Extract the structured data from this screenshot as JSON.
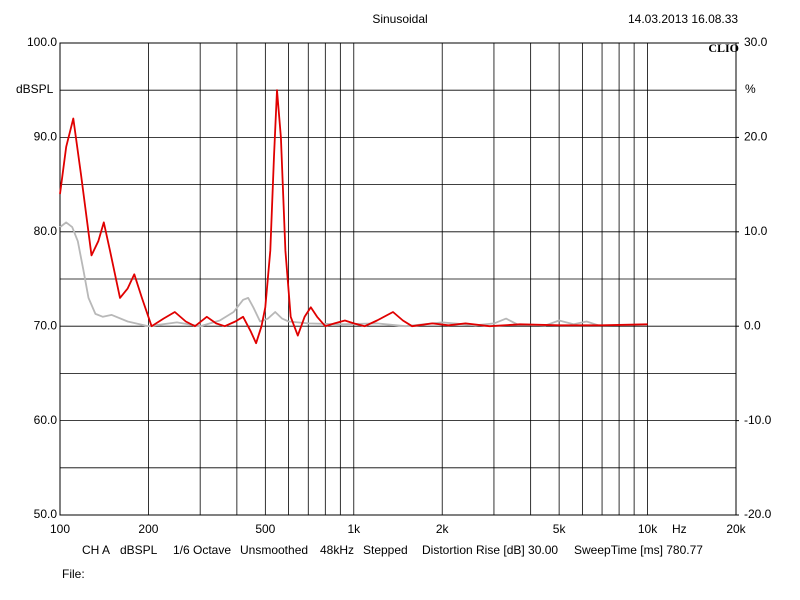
{
  "chart_data": {
    "type": "line",
    "title": "Sinusoidal",
    "timestamp": "14.03.2013 16.08.33",
    "brand": "CLIO",
    "y_label": "dBSPL",
    "y2_label": "%",
    "x_unit": "Hz",
    "x_scale": "log",
    "grid": true,
    "xlim": [
      100,
      20000
    ],
    "xticks": [
      100,
      200,
      500,
      {
        "value": 1000,
        "label": "1k"
      },
      {
        "value": 2000,
        "label": "2k"
      },
      {
        "value": 5000,
        "label": "5k"
      },
      {
        "value": 10000,
        "label": "10k"
      },
      {
        "value": 20000,
        "label": "20k"
      }
    ],
    "xminor": [
      300,
      400,
      600,
      700,
      800,
      900,
      3000,
      4000,
      6000,
      7000,
      8000,
      9000
    ],
    "ylim": [
      50,
      100
    ],
    "yticks": [
      {
        "value": 100,
        "label": "100.0"
      },
      {
        "value": 90,
        "label": "90.0"
      },
      {
        "value": 80,
        "label": "80.0"
      },
      {
        "value": 70,
        "label": "70.0"
      },
      {
        "value": 60,
        "label": "60.0"
      },
      {
        "value": 50,
        "label": "50.0"
      }
    ],
    "yminor": [
      95,
      85,
      75,
      65,
      55
    ],
    "y2lim": [
      -20,
      30
    ],
    "y2ticks": [
      {
        "value": 30,
        "label": "30.0"
      },
      {
        "value": 20,
        "label": "20.0"
      },
      {
        "value": 10,
        "label": "10.0"
      },
      {
        "value": 0,
        "label": "0.0"
      },
      {
        "value": -10,
        "label": "-10.0"
      },
      {
        "value": -20,
        "label": "-20.0"
      }
    ],
    "series": [
      {
        "color": "#b8b8b8",
        "x": [
          100,
          105,
          110,
          115,
          120,
          125,
          132,
          140,
          150,
          170,
          200,
          250,
          300,
          350,
          390,
          420,
          437,
          455,
          480,
          510,
          540,
          570,
          600,
          700,
          900,
          1200,
          1500,
          2000,
          2600,
          3000,
          3300,
          3600,
          4500,
          5000,
          5600,
          6200,
          6800
        ],
        "values": [
          80.5,
          81,
          80.5,
          79,
          76,
          73,
          71.3,
          71,
          71.2,
          70.5,
          70,
          70.4,
          70,
          70.6,
          71.5,
          72.8,
          73,
          72,
          70.5,
          70.8,
          71.5,
          70.8,
          70.5,
          70.3,
          70.2,
          70.3,
          70,
          70.4,
          70.1,
          70.3,
          70.8,
          70.2,
          70.1,
          70.6,
          70.2,
          70.5,
          70.1
        ]
      },
      {
        "color": "#e00000",
        "x": [
          100,
          105,
          111,
          118,
          128,
          135,
          141,
          148,
          160,
          170,
          179,
          190,
          205,
          225,
          246,
          268,
          288,
          316,
          340,
          364,
          395,
          420,
          445,
          465,
          485,
          500,
          520,
          535,
          548,
          565,
          585,
          610,
          645,
          680,
          714,
          750,
          800,
          860,
          933,
          1000,
          1090,
          1200,
          1360,
          1470,
          1580,
          1850,
          2100,
          2400,
          2900,
          3680,
          5000,
          7000,
          10000
        ],
        "values": [
          84,
          89,
          92,
          86,
          77.5,
          79,
          81,
          78,
          73,
          74,
          75.5,
          73,
          70,
          70.8,
          71.5,
          70.5,
          70,
          71,
          70.3,
          70,
          70.5,
          71,
          69.5,
          68.2,
          70,
          72,
          78,
          88,
          95,
          90,
          78,
          71,
          69,
          71,
          72,
          71,
          70,
          70.3,
          70.6,
          70.3,
          70,
          70.6,
          71.5,
          70.6,
          70,
          70.3,
          70.1,
          70.3,
          70,
          70.2,
          70.1,
          70.1,
          70.2
        ]
      }
    ],
    "footer": [
      "CH A",
      "dBSPL",
      "1/6 Octave",
      "Unsmoothed",
      "48kHz",
      "Stepped",
      "Distortion Rise [dB] 30.00",
      "SweepTime [ms] 780.77"
    ],
    "file_label": "File:"
  }
}
